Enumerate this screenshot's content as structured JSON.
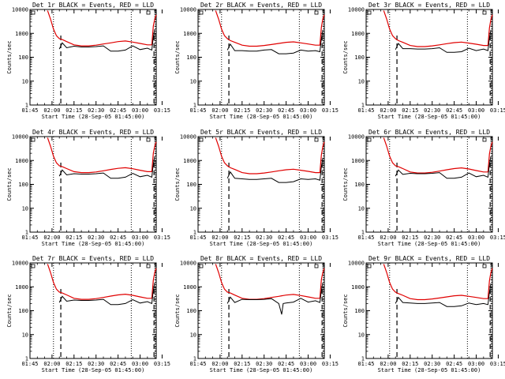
{
  "figure": {
    "xtick_labels": [
      "01:45",
      "02:00",
      "02:15",
      "02:30",
      "02:45",
      "03:00",
      "03:15"
    ],
    "ytick_labels": [
      "1",
      "10",
      "100",
      "1000",
      "10000"
    ],
    "xlabel": "Start Time (28-Sep-05 01:45:00)",
    "ylabel": "Counts/sec",
    "colors": {
      "events": "#000000",
      "lld": "#e00000",
      "axes": "#000000"
    }
  },
  "chart_data": [
    {
      "type": "line",
      "title": "Det 1r BLACK = Events, RED = LLD",
      "xlim_minutes_after_0145": [
        0,
        86
      ],
      "ylim": [
        1,
        10000
      ],
      "yscale": "log",
      "vlines_dotted": [
        16,
        69,
        85.5
      ],
      "vlines_dashed": [
        21,
        84.5
      ],
      "x": [
        12,
        14,
        16,
        18,
        20,
        22,
        25,
        30,
        35,
        40,
        45,
        50,
        55,
        60,
        65,
        70,
        75,
        80,
        83,
        84,
        85,
        86
      ],
      "series": [
        {
          "name": "LLD",
          "values": [
            9000,
            4000,
            1500,
            800,
            600,
            550,
            450,
            330,
            300,
            300,
            320,
            360,
            400,
            450,
            480,
            430,
            380,
            330,
            330,
            2000,
            4000,
            6000
          ]
        },
        {
          "name": "Events",
          "values": [
            null,
            null,
            null,
            null,
            220,
            400,
            250,
            290,
            270,
            270,
            280,
            300,
            180,
            180,
            200,
            300,
            210,
            240,
            200,
            700,
            1500,
            null
          ]
        }
      ]
    },
    {
      "type": "line",
      "title": "Det 2r BLACK = Events, RED = LLD",
      "xlim_minutes_after_0145": [
        0,
        86
      ],
      "ylim": [
        1,
        10000
      ],
      "yscale": "log",
      "vlines_dotted": [
        16,
        69,
        85.5
      ],
      "vlines_dashed": [
        21,
        84.5
      ],
      "x": [
        12,
        14,
        16,
        18,
        20,
        22,
        25,
        30,
        35,
        40,
        45,
        50,
        55,
        60,
        65,
        70,
        75,
        80,
        83,
        84,
        85,
        86
      ],
      "series": [
        {
          "name": "LLD",
          "values": [
            9000,
            4000,
            1500,
            800,
            600,
            500,
            420,
            320,
            290,
            290,
            310,
            340,
            380,
            420,
            440,
            400,
            360,
            320,
            320,
            1800,
            4000,
            6000
          ]
        },
        {
          "name": "Events",
          "values": [
            null,
            null,
            null,
            null,
            200,
            350,
            190,
            190,
            180,
            180,
            200,
            210,
            140,
            140,
            150,
            200,
            180,
            190,
            170,
            600,
            1400,
            null
          ]
        }
      ]
    },
    {
      "type": "line",
      "title": "Det 3r BLACK = Events, RED = LLD",
      "xlim_minutes_after_0145": [
        0,
        86
      ],
      "ylim": [
        1,
        10000
      ],
      "yscale": "log",
      "vlines_dotted": [
        16,
        69,
        85.5
      ],
      "vlines_dashed": [
        21,
        84.5
      ],
      "x": [
        12,
        14,
        16,
        18,
        20,
        22,
        25,
        30,
        35,
        40,
        45,
        50,
        55,
        60,
        65,
        70,
        75,
        80,
        83,
        84,
        85,
        86
      ],
      "series": [
        {
          "name": "LLD",
          "values": [
            9000,
            4000,
            1500,
            800,
            600,
            500,
            420,
            310,
            280,
            280,
            300,
            330,
            370,
            410,
            430,
            390,
            350,
            310,
            310,
            1700,
            3800,
            6000
          ]
        },
        {
          "name": "Events",
          "values": [
            null,
            null,
            null,
            null,
            210,
            380,
            230,
            230,
            220,
            220,
            230,
            250,
            160,
            160,
            170,
            240,
            190,
            220,
            190,
            650,
            1400,
            null
          ]
        }
      ]
    },
    {
      "type": "line",
      "title": "Det 4r BLACK = Events, RED = LLD",
      "xlim_minutes_after_0145": [
        0,
        86
      ],
      "ylim": [
        1,
        10000
      ],
      "yscale": "log",
      "vlines_dotted": [
        16,
        69,
        85.5
      ],
      "vlines_dashed": [
        21,
        84.5
      ],
      "x": [
        12,
        14,
        16,
        18,
        20,
        22,
        25,
        30,
        35,
        40,
        45,
        50,
        55,
        60,
        65,
        70,
        75,
        80,
        83,
        84,
        85,
        86
      ],
      "series": [
        {
          "name": "LLD",
          "values": [
            9000,
            4000,
            1500,
            800,
            600,
            550,
            460,
            340,
            310,
            310,
            330,
            370,
            420,
            470,
            500,
            450,
            390,
            340,
            340,
            2000,
            4000,
            6000
          ]
        },
        {
          "name": "Events",
          "values": [
            null,
            null,
            null,
            null,
            220,
            400,
            250,
            280,
            270,
            270,
            280,
            300,
            180,
            180,
            200,
            290,
            210,
            240,
            200,
            700,
            1500,
            null
          ]
        }
      ]
    },
    {
      "type": "line",
      "title": "Det 5r BLACK = Events, RED = LLD",
      "xlim_minutes_after_0145": [
        0,
        86
      ],
      "ylim": [
        1,
        10000
      ],
      "yscale": "log",
      "vlines_dotted": [
        16,
        69,
        85.5
      ],
      "vlines_dashed": [
        21,
        84.5
      ],
      "x": [
        12,
        14,
        16,
        18,
        20,
        22,
        25,
        30,
        35,
        40,
        45,
        50,
        55,
        60,
        65,
        70,
        75,
        80,
        83,
        84,
        85,
        86
      ],
      "series": [
        {
          "name": "LLD",
          "values": [
            9000,
            4000,
            1500,
            800,
            600,
            500,
            420,
            310,
            280,
            280,
            300,
            330,
            370,
            410,
            430,
            390,
            350,
            310,
            310,
            1700,
            3800,
            6000
          ]
        },
        {
          "name": "Events",
          "values": [
            null,
            null,
            null,
            null,
            180,
            330,
            180,
            170,
            160,
            160,
            170,
            180,
            120,
            120,
            130,
            170,
            160,
            170,
            150,
            550,
            1300,
            null
          ]
        }
      ]
    },
    {
      "type": "line",
      "title": "Det 6r BLACK = Events, RED = LLD",
      "xlim_minutes_after_0145": [
        0,
        86
      ],
      "ylim": [
        1,
        10000
      ],
      "yscale": "log",
      "vlines_dotted": [
        16,
        69,
        85.5
      ],
      "vlines_dashed": [
        21,
        84.5
      ],
      "x": [
        12,
        14,
        16,
        18,
        20,
        22,
        25,
        30,
        35,
        40,
        45,
        50,
        55,
        60,
        65,
        70,
        75,
        80,
        83,
        84,
        85,
        86
      ],
      "series": [
        {
          "name": "LLD",
          "values": [
            9000,
            4000,
            1500,
            800,
            600,
            550,
            460,
            330,
            300,
            300,
            320,
            360,
            410,
            460,
            490,
            440,
            380,
            330,
            330,
            1900,
            4000,
            6000
          ]
        },
        {
          "name": "Events",
          "values": [
            null,
            null,
            null,
            null,
            220,
            400,
            260,
            290,
            280,
            280,
            290,
            310,
            180,
            180,
            200,
            300,
            210,
            240,
            200,
            700,
            1500,
            null
          ]
        }
      ]
    },
    {
      "type": "line",
      "title": "Det 7r BLACK = Events, RED = LLD",
      "xlim_minutes_after_0145": [
        0,
        86
      ],
      "ylim": [
        1,
        10000
      ],
      "yscale": "log",
      "vlines_dotted": [
        16,
        69,
        85.5
      ],
      "vlines_dashed": [
        21,
        84.5
      ],
      "x": [
        12,
        14,
        16,
        18,
        20,
        22,
        25,
        30,
        35,
        40,
        45,
        50,
        55,
        60,
        65,
        70,
        75,
        80,
        83,
        84,
        85,
        86
      ],
      "series": [
        {
          "name": "LLD",
          "values": [
            9000,
            4000,
            1500,
            800,
            600,
            550,
            460,
            330,
            300,
            300,
            320,
            360,
            410,
            460,
            490,
            440,
            380,
            330,
            330,
            1900,
            4000,
            6000
          ]
        },
        {
          "name": "Events",
          "values": [
            null,
            null,
            null,
            null,
            220,
            400,
            250,
            280,
            270,
            270,
            280,
            300,
            180,
            180,
            200,
            290,
            210,
            240,
            200,
            700,
            1500,
            null
          ]
        }
      ]
    },
    {
      "type": "line",
      "title": "Det 8r BLACK = Events, RED = LLD",
      "xlim_minutes_after_0145": [
        0,
        86
      ],
      "ylim": [
        1,
        10000
      ],
      "yscale": "log",
      "vlines_dotted": [
        16,
        69,
        85.5
      ],
      "vlines_dashed": [
        21,
        84.5
      ],
      "x": [
        12,
        14,
        16,
        18,
        20,
        22,
        25,
        30,
        35,
        40,
        45,
        50,
        55,
        57,
        58,
        60,
        65,
        70,
        75,
        80,
        83,
        84,
        85,
        86
      ],
      "series": [
        {
          "name": "LLD",
          "values": [
            9000,
            4000,
            1500,
            800,
            600,
            550,
            450,
            330,
            300,
            300,
            320,
            360,
            400,
            420,
            430,
            450,
            480,
            430,
            380,
            330,
            330,
            2000,
            4000,
            6000
          ]
        },
        {
          "name": "Events",
          "values": [
            null,
            null,
            null,
            null,
            200,
            370,
            220,
            300,
            290,
            290,
            300,
            320,
            200,
            70,
            200,
            210,
            230,
            330,
            230,
            260,
            220,
            700,
            1500,
            null
          ]
        }
      ]
    },
    {
      "type": "line",
      "title": "Det 9r BLACK = Events, RED = LLD",
      "xlim_minutes_after_0145": [
        0,
        86
      ],
      "ylim": [
        1,
        10000
      ],
      "yscale": "log",
      "vlines_dotted": [
        16,
        69,
        85.5
      ],
      "vlines_dashed": [
        21,
        84.5
      ],
      "x": [
        12,
        14,
        16,
        18,
        20,
        22,
        25,
        30,
        35,
        40,
        45,
        50,
        55,
        60,
        65,
        70,
        75,
        80,
        83,
        84,
        85,
        86
      ],
      "series": [
        {
          "name": "LLD",
          "values": [
            9000,
            4000,
            1500,
            800,
            600,
            520,
            440,
            320,
            290,
            290,
            310,
            340,
            380,
            420,
            440,
            400,
            360,
            320,
            320,
            1800,
            4000,
            6000
          ]
        },
        {
          "name": "Events",
          "values": [
            null,
            null,
            null,
            null,
            200,
            360,
            220,
            210,
            200,
            200,
            210,
            220,
            150,
            150,
            160,
            210,
            180,
            200,
            180,
            600,
            1400,
            null
          ]
        }
      ]
    }
  ]
}
